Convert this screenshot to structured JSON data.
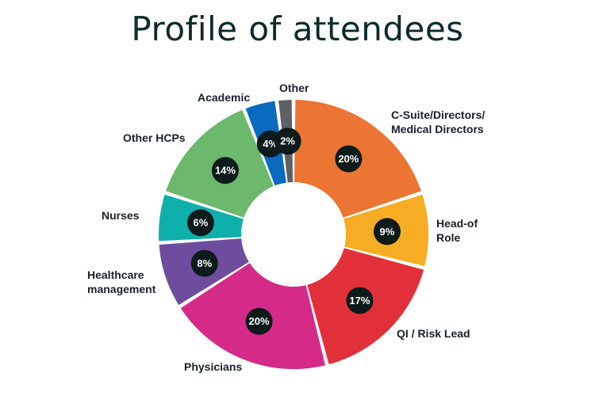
{
  "title": "Profile of attendees",
  "chart_data": {
    "type": "pie",
    "title": "Profile of attendees",
    "series": [
      {
        "name": "C-Suite/Directors/ Medical Directors",
        "lines": [
          "C-Suite/Directors/",
          "Medical Directors"
        ],
        "value": 20,
        "label": "20%",
        "color": "#ec7533"
      },
      {
        "name": "Head-of Role",
        "lines": [
          "Head-of",
          "Role"
        ],
        "value": 9,
        "label": "9%",
        "color": "#f6ad23"
      },
      {
        "name": "QI / Risk Lead",
        "lines": [
          "QI / Risk Lead"
        ],
        "value": 17,
        "label": "17%",
        "color": "#e2303a"
      },
      {
        "name": "Physicians",
        "lines": [
          "Physicians"
        ],
        "value": 20,
        "label": "20%",
        "color": "#d52a88"
      },
      {
        "name": "Healthcare management",
        "lines": [
          "Healthcare",
          "management"
        ],
        "value": 8,
        "label": "8%",
        "color": "#6e4c9e"
      },
      {
        "name": "Nurses",
        "lines": [
          "Nurses"
        ],
        "value": 6,
        "label": "6%",
        "color": "#0fb0ac"
      },
      {
        "name": "Other HCPs",
        "lines": [
          "Other HCPs"
        ],
        "value": 14,
        "label": "14%",
        "color": "#6cb86c"
      },
      {
        "name": "Academic",
        "lines": [
          "Academic"
        ],
        "value": 4,
        "label": "4%",
        "color": "#0a6abf"
      },
      {
        "name": "Other",
        "lines": [
          "Other"
        ],
        "value": 2,
        "label": "2%",
        "color": "#5d6064"
      }
    ],
    "donut": true,
    "legend": "none"
  }
}
